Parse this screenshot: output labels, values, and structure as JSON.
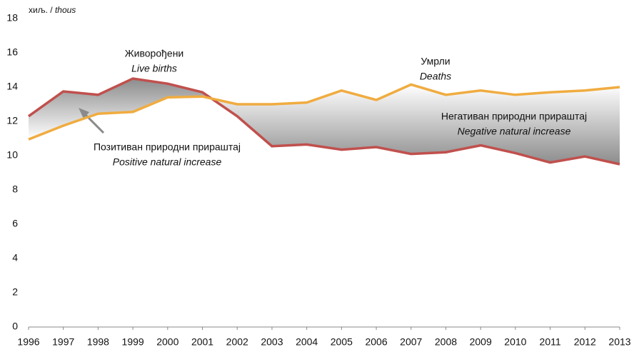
{
  "chart_data": {
    "type": "line",
    "y_unit": [
      "хиљ. /",
      "thous"
    ],
    "x": [
      1996,
      1997,
      1998,
      1999,
      2000,
      2001,
      2002,
      2003,
      2004,
      2005,
      2006,
      2007,
      2008,
      2009,
      2010,
      2011,
      2012,
      2013
    ],
    "xlim": [
      1996,
      2013
    ],
    "xticks": [
      1996,
      1997,
      1998,
      1999,
      2000,
      2001,
      2002,
      2003,
      2004,
      2005,
      2006,
      2007,
      2008,
      2009,
      2010,
      2011,
      2012,
      2013
    ],
    "series": [
      {
        "name": "Живорођени",
        "name_en": "Live births",
        "color": "#c0504d",
        "values": [
          12.3,
          13.75,
          13.55,
          14.5,
          14.2,
          13.7,
          12.3,
          10.55,
          10.65,
          10.35,
          10.5,
          10.1,
          10.2,
          10.6,
          10.15,
          9.6,
          9.95,
          9.5
        ]
      },
      {
        "name": "Умрли",
        "name_en": "Deaths",
        "color": "#f0ac40",
        "values": [
          10.95,
          11.75,
          12.45,
          12.55,
          13.4,
          13.45,
          13.0,
          13.0,
          13.1,
          13.8,
          13.25,
          14.15,
          13.55,
          13.8,
          13.55,
          13.7,
          13.8,
          14.0
        ]
      }
    ],
    "ylim": [
      0,
      18
    ],
    "yticks": [
      0,
      2,
      4,
      6,
      8,
      10,
      12,
      14,
      16,
      18
    ],
    "annotations": [
      {
        "text": "Негативан природни прираштај",
        "text_en": "Negative natural increase"
      },
      {
        "text": "Позитиван природни прираштај",
        "text_en": "Positive natural increase"
      }
    ]
  }
}
